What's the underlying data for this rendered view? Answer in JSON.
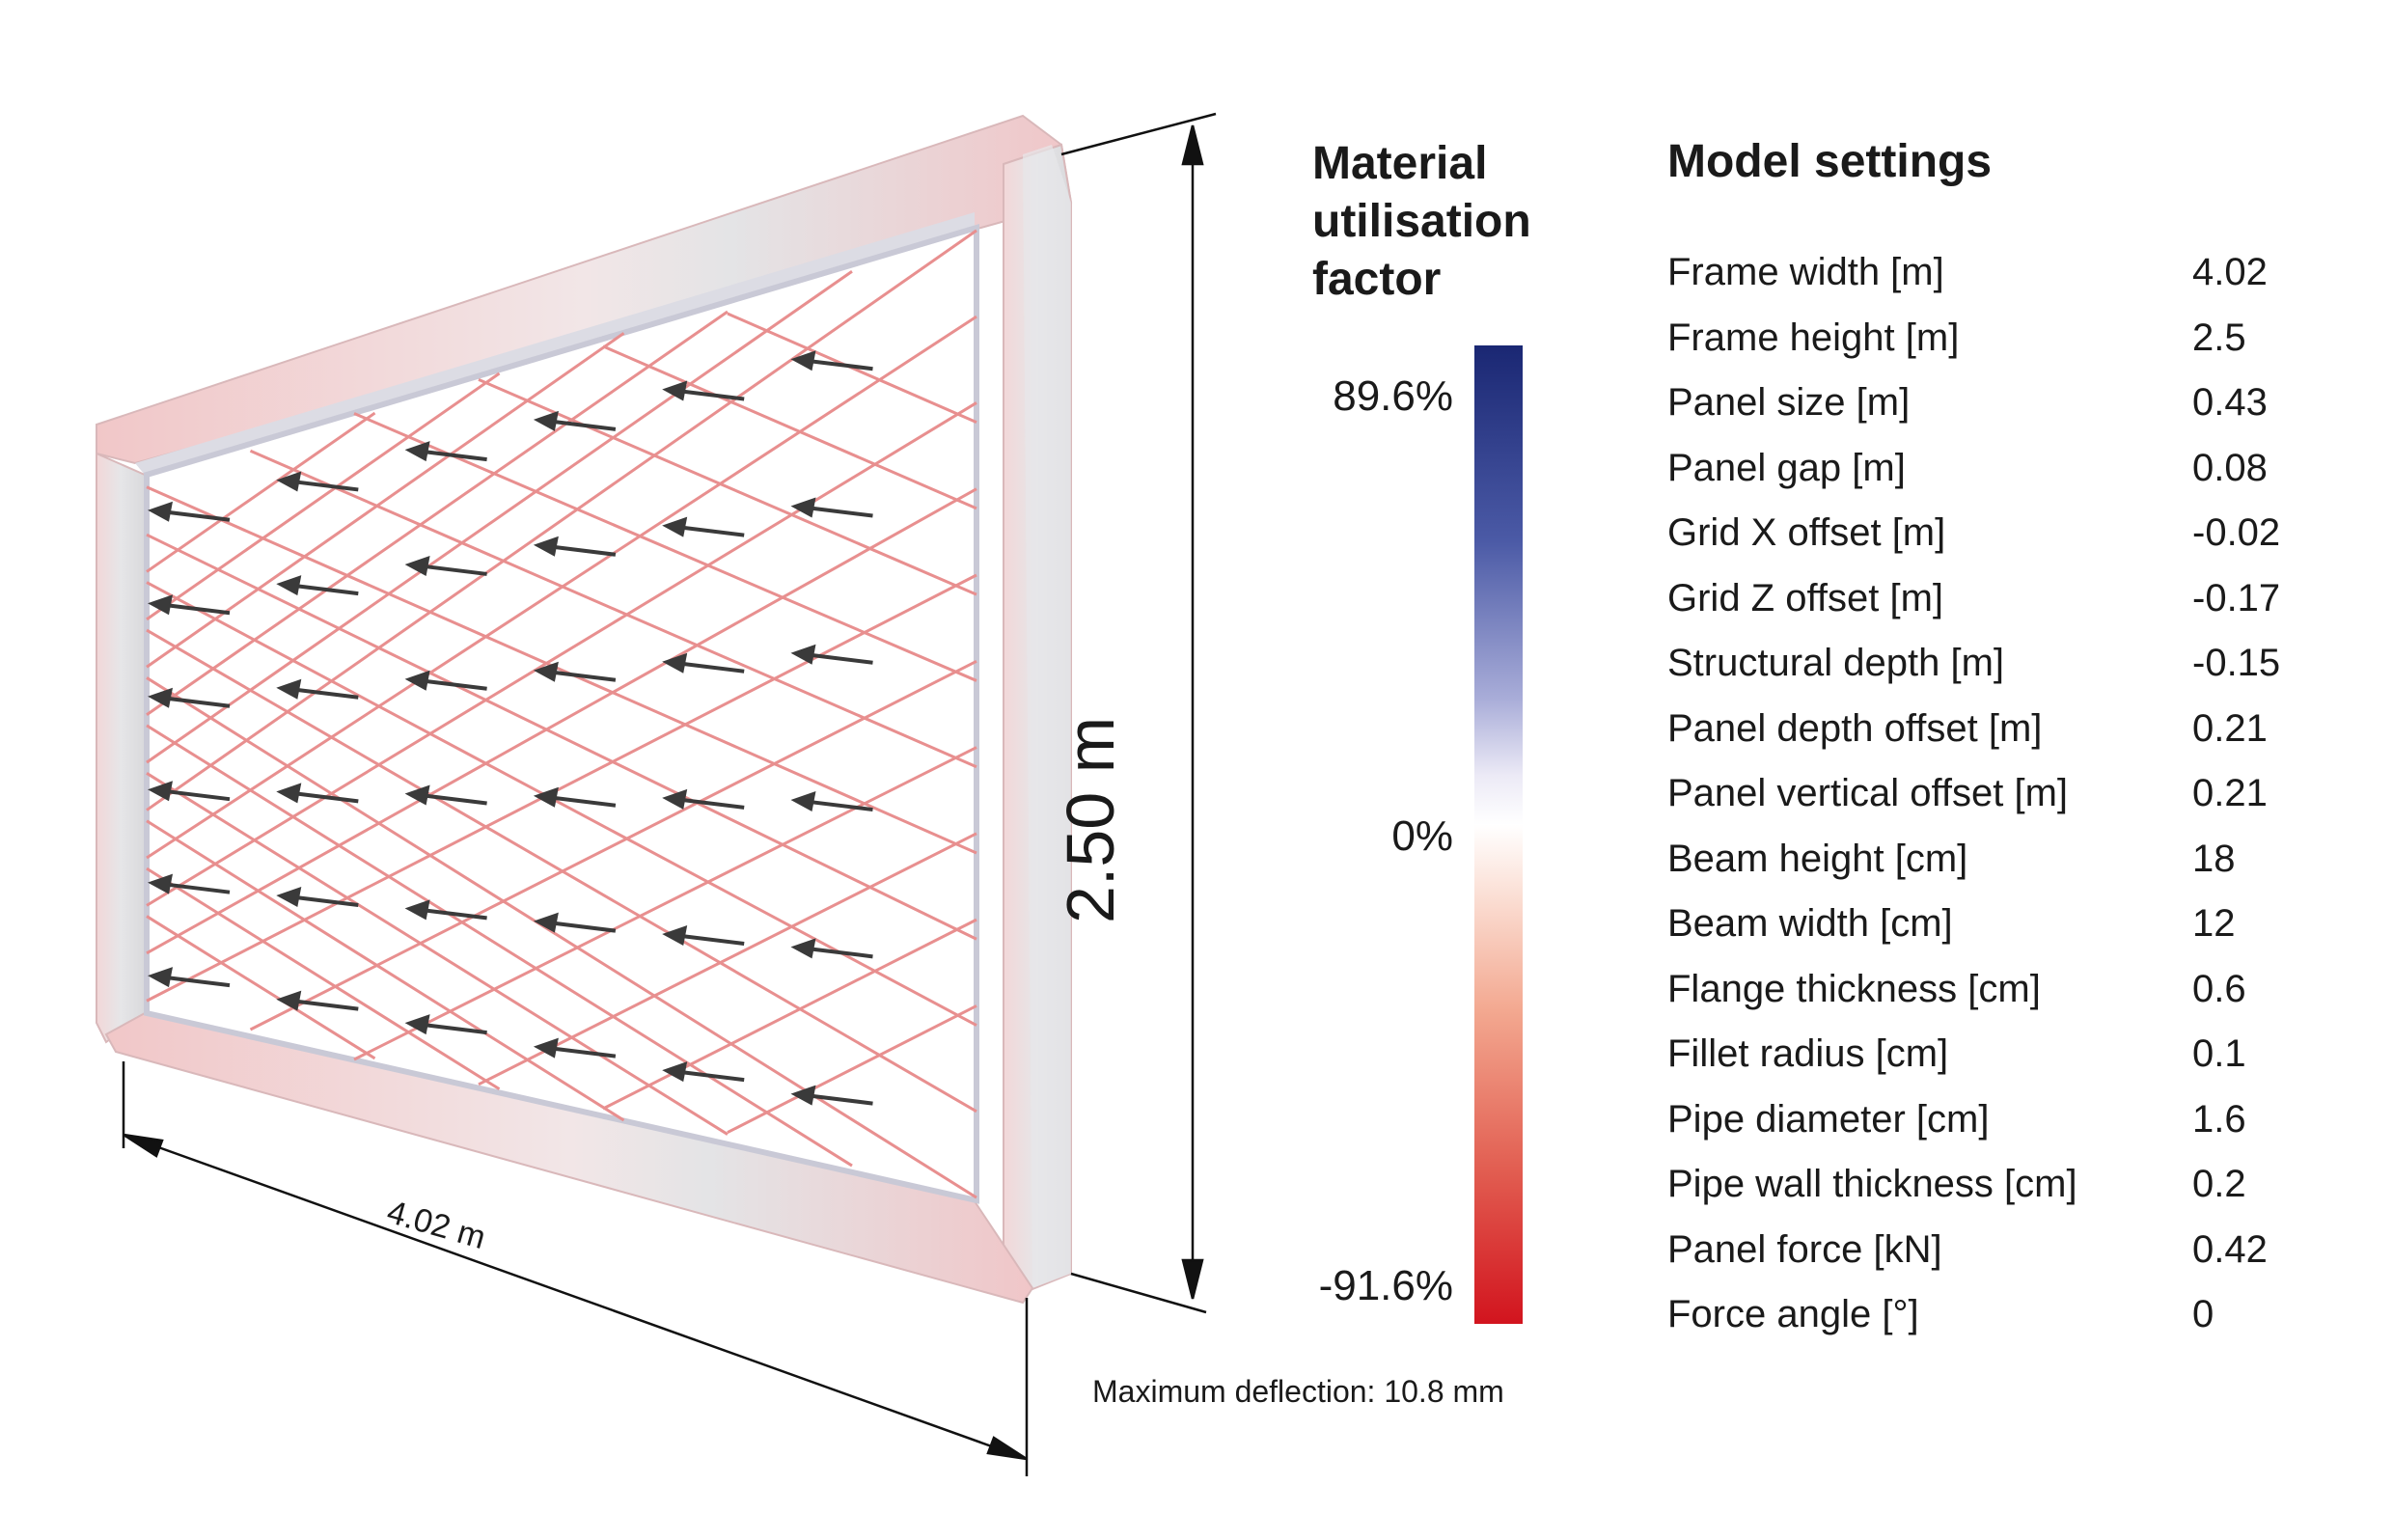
{
  "legend": {
    "title_lines": [
      "Material",
      "utilisation",
      "factor"
    ],
    "max_label": "89.6%",
    "mid_label": "0%",
    "min_label": "-91.6%",
    "colors": {
      "max": "#1a2773",
      "mid": "#ffffff",
      "min": "#d2141e"
    }
  },
  "dimensions": {
    "height_label": "2.50 m",
    "width_label": "4.02 m"
  },
  "deflection_text": "Maximum deflection: 10.8 mm",
  "settings": {
    "title": "Model settings",
    "rows": [
      {
        "label": "Frame width [m]",
        "value": "4.02"
      },
      {
        "label": "Frame height [m]",
        "value": "2.5"
      },
      {
        "label": "Panel size [m]",
        "value": "0.43"
      },
      {
        "label": "Panel gap [m]",
        "value": "0.08"
      },
      {
        "label": "Grid X offset [m]",
        "value": "-0.02"
      },
      {
        "label": "Grid Z offset [m]",
        "value": "-0.17"
      },
      {
        "label": "Structural depth [m]",
        "value": "-0.15"
      },
      {
        "label": "Panel depth offset [m]",
        "value": "0.21"
      },
      {
        "label": "Panel vertical offset [m]",
        "value": "0.21"
      },
      {
        "label": "Beam height [cm]",
        "value": "18"
      },
      {
        "label": "Beam width [cm]",
        "value": "12"
      },
      {
        "label": "Flange thickness [cm]",
        "value": "0.6"
      },
      {
        "label": "Fillet radius [cm]",
        "value": "0.1"
      },
      {
        "label": "Pipe diameter [cm]",
        "value": "1.6"
      },
      {
        "label": "Pipe wall thickness [cm]",
        "value": "0.2"
      },
      {
        "label": "Panel force [kN]",
        "value": "0.42"
      },
      {
        "label": "Force angle [°]",
        "value": "0"
      }
    ]
  },
  "frame_color": "#e9c9cb",
  "net_color": "#e88f8f",
  "arrow_color": "#3a3a3a"
}
